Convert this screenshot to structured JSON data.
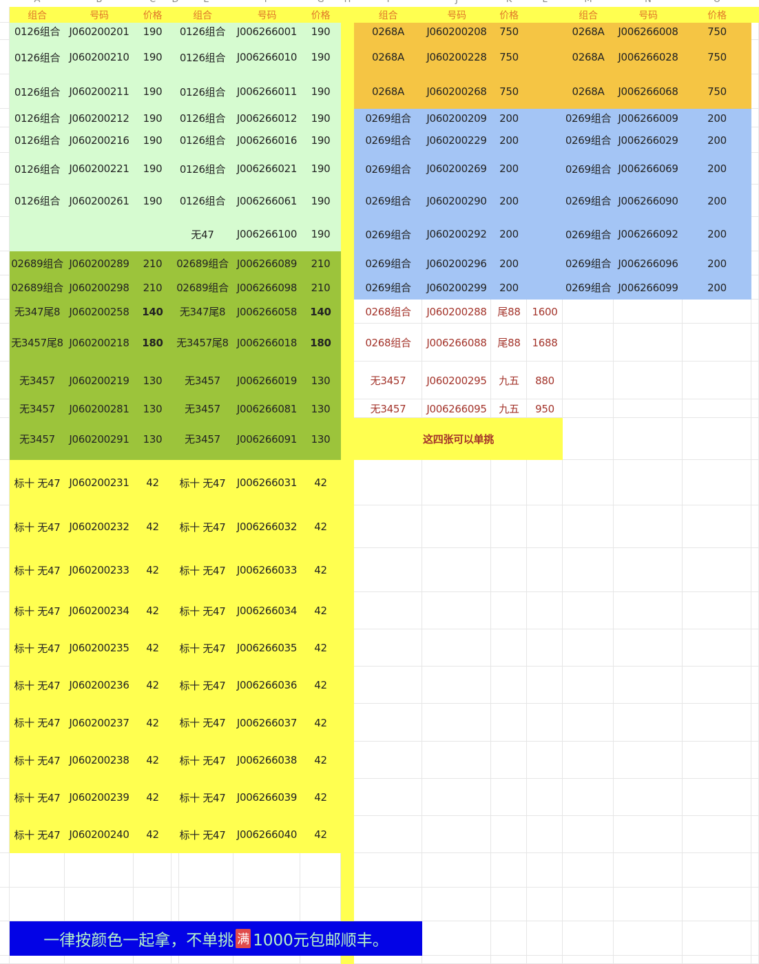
{
  "column_letters": [
    "A",
    "B",
    "C",
    "D",
    "E",
    "F",
    "G",
    "H",
    "I",
    "J",
    "K",
    "L",
    "M",
    "N",
    "O"
  ],
  "colors": {
    "header_fill": "#ffff50",
    "header_text": "#e0782a",
    "light_green": "#d6fbd0",
    "olive_green": "#9cc43b",
    "orange": "#f5c544",
    "blue": "#a4c5f5",
    "yellow": "#ffff50",
    "red_text": "#a3332a",
    "banner_fill": "#0303e6",
    "banner_text": "#b5f2c9"
  },
  "headers": {
    "left": [
      "组合",
      "号码",
      "价格",
      "组合",
      "号码",
      "价格"
    ],
    "right": [
      "组合",
      "号码",
      "价格",
      "组合",
      "号码",
      "价格"
    ]
  },
  "left_rows": [
    [
      "0126组合",
      "J060200201",
      "190",
      "0126组合",
      "J006266001",
      "190"
    ],
    [
      "0126组合",
      "J060200210",
      "190",
      "0126组合",
      "J006266010",
      "190"
    ],
    [
      "0126组合",
      "J060200211",
      "190",
      "0126组合",
      "J006266011",
      "190"
    ],
    [
      "0126组合",
      "J060200212",
      "190",
      "0126组合",
      "J006266012",
      "190"
    ],
    [
      "0126组合",
      "J060200216",
      "190",
      "0126组合",
      "J006266016",
      "190"
    ],
    [
      "0126组合",
      "J060200221",
      "190",
      "0126组合",
      "J006266021",
      "190"
    ],
    [
      "0126组合",
      "J060200261",
      "190",
      "0126组合",
      "J006266061",
      "190"
    ],
    [
      "",
      "",
      "",
      "无47",
      "J006266100",
      "190"
    ],
    [
      "02689组合",
      "J060200289",
      "210",
      "02689组合",
      "J006266089",
      "210"
    ],
    [
      "02689组合",
      "J060200298",
      "210",
      "02689组合",
      "J006266098",
      "210"
    ],
    [
      "无347尾8",
      "J060200258",
      "140",
      "无347尾8",
      "J006266058",
      "140"
    ],
    [
      "无3457尾8",
      "J060200218",
      "180",
      "无3457尾8",
      "J006266018",
      "180"
    ],
    [
      "无3457",
      "J060200219",
      "130",
      "无3457",
      "J006266019",
      "130"
    ],
    [
      "无3457",
      "J060200281",
      "130",
      "无3457",
      "J006266081",
      "130"
    ],
    [
      "无3457",
      "J060200291",
      "130",
      "无3457",
      "J006266091",
      "130"
    ],
    [
      "标十 无47",
      "J060200231",
      "42",
      "标十 无47",
      "J006266031",
      "42"
    ],
    [
      "标十 无47",
      "J060200232",
      "42",
      "标十 无47",
      "J006266032",
      "42"
    ],
    [
      "标十 无47",
      "J060200233",
      "42",
      "标十 无47",
      "J006266033",
      "42"
    ],
    [
      "标十 无47",
      "J060200234",
      "42",
      "标十 无47",
      "J006266034",
      "42"
    ],
    [
      "标十 无47",
      "J060200235",
      "42",
      "标十 无47",
      "J006266035",
      "42"
    ],
    [
      "标十 无47",
      "J060200236",
      "42",
      "标十 无47",
      "J006266036",
      "42"
    ],
    [
      "标十 无47",
      "J060200237",
      "42",
      "标十 无47",
      "J006266037",
      "42"
    ],
    [
      "标十 无47",
      "J060200238",
      "42",
      "标十 无47",
      "J006266038",
      "42"
    ],
    [
      "标十 无47",
      "J060200239",
      "42",
      "标十 无47",
      "J006266039",
      "42"
    ],
    [
      "标十 无47",
      "J060200240",
      "42",
      "标十 无47",
      "J006266040",
      "42"
    ]
  ],
  "right_rows": [
    [
      "0268A",
      "J060200208",
      "750",
      "0268A",
      "J006266008",
      "750"
    ],
    [
      "0268A",
      "J060200228",
      "750",
      "0268A",
      "J006266028",
      "750"
    ],
    [
      "0268A",
      "J060200268",
      "750",
      "0268A",
      "J006266068",
      "750"
    ],
    [
      "0269组合",
      "J060200209",
      "200",
      "0269组合",
      "J006266009",
      "200"
    ],
    [
      "0269组合",
      "J060200229",
      "200",
      "0269组合",
      "J006266029",
      "200"
    ],
    [
      "0269组合",
      "J060200269",
      "200",
      "0269组合",
      "J006266069",
      "200"
    ],
    [
      "0269组合",
      "J060200290",
      "200",
      "0269组合",
      "J006266090",
      "200"
    ],
    [
      "0269组合",
      "J060200292",
      "200",
      "0269组合",
      "J006266092",
      "200"
    ],
    [
      "0269组合",
      "J060200296",
      "200",
      "0269组合",
      "J006266096",
      "200"
    ],
    [
      "0269组合",
      "J060200299",
      "200",
      "0269组合",
      "J006266099",
      "200"
    ]
  ],
  "single_rows": [
    [
      "0268组合",
      "J060200288",
      "尾88",
      "1600"
    ],
    [
      "0268组合",
      "J006266088",
      "尾88",
      "1688"
    ],
    [
      "无3457",
      "J060200295",
      "九五",
      "880"
    ],
    [
      "无3457",
      "J006266095",
      "九五",
      "950"
    ]
  ],
  "single_note": "这四张可以单挑",
  "banner": {
    "text_before": "一律按颜色一起拿，不单挑",
    "badge": "满",
    "text_after": "1000元包邮顺丰。"
  }
}
